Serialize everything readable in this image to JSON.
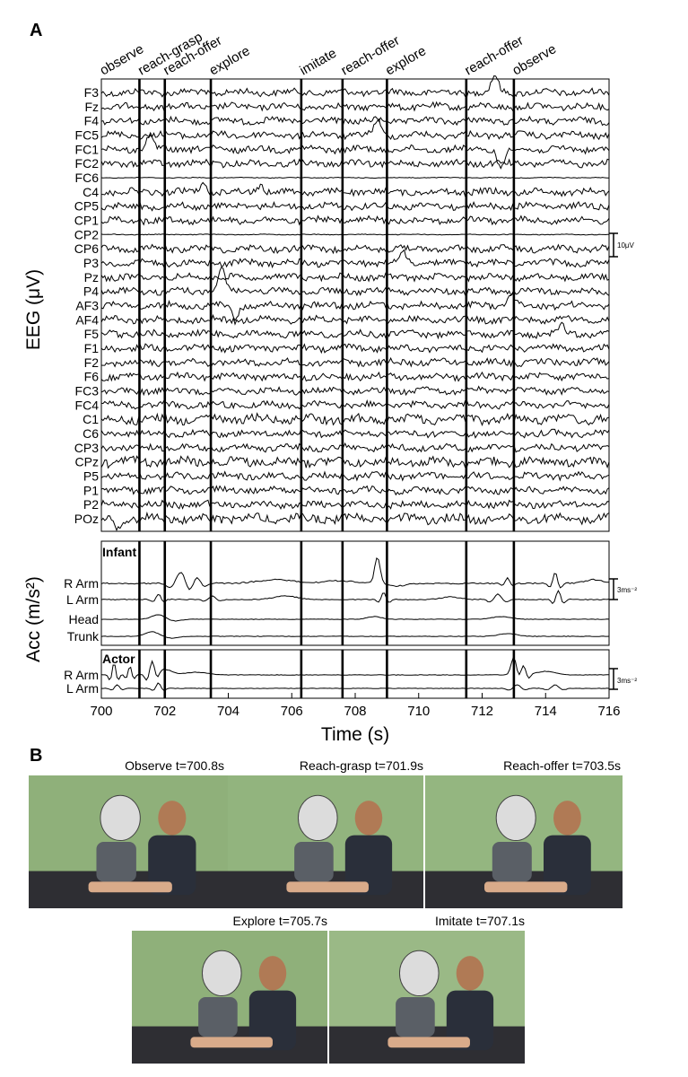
{
  "panels": {
    "a_label": "A",
    "b_label": "B"
  },
  "chart_data": {
    "type": "line",
    "xlabel": "Time (s)",
    "xlim": [
      700,
      716
    ],
    "x_ticks": [
      "700",
      "702",
      "704",
      "706",
      "708",
      "710",
      "712",
      "714",
      "716"
    ],
    "events": [
      {
        "label": "observe",
        "t": 700.0
      },
      {
        "label": "reach-grasp",
        "t": 701.2
      },
      {
        "label": "reach-offer",
        "t": 702.0
      },
      {
        "label": "explore",
        "t": 703.45
      },
      {
        "label": "imitate",
        "t": 706.3
      },
      {
        "label": "reach-offer",
        "t": 707.6
      },
      {
        "label": "explore",
        "t": 709.0
      },
      {
        "label": "reach-offer",
        "t": 711.5
      },
      {
        "label": "observe",
        "t": 713.0
      }
    ],
    "eeg": {
      "ylabel": "EEG (μV)",
      "scale_label": "10μV",
      "channels": [
        "F3",
        "Fz",
        "F4",
        "FC5",
        "FC1",
        "FC2",
        "FC6",
        "C4",
        "CP5",
        "CP1",
        "CP2",
        "CP6",
        "P3",
        "Pz",
        "P4",
        "AF3",
        "AF4",
        "F5",
        "F1",
        "F2",
        "F6",
        "FC3",
        "FC4",
        "C1",
        "C6",
        "CP3",
        "CPz",
        "P5",
        "P1",
        "P2",
        "POz"
      ]
    },
    "acc": {
      "ylabel": "Acc (m/s²)",
      "scale_label": "3ms⁻²",
      "infant_title": "Infant",
      "infant_channels": [
        "R Arm",
        "L Arm",
        "Head",
        "Trunk"
      ],
      "actor_title": "Actor",
      "actor_channels": [
        "R Arm",
        "L Arm"
      ]
    }
  },
  "frames": [
    {
      "caption": "Observe t=700.8s",
      "colors": {
        "wall": "#8fb07a",
        "floor": "#2e2e33",
        "shirt": "#2a2f3a",
        "skin": "#d9ab8a"
      }
    },
    {
      "caption": "Reach-grasp t=701.9s",
      "colors": {
        "wall": "#92b47e",
        "floor": "#2e2e33",
        "shirt": "#2a2f3a",
        "skin": "#d9ab8a"
      }
    },
    {
      "caption": "Reach-offer t=703.5s",
      "colors": {
        "wall": "#94b680",
        "floor": "#2e2e33",
        "shirt": "#2a2f3a",
        "skin": "#d9ab8a"
      }
    },
    {
      "caption": "Explore t=705.7s",
      "colors": {
        "wall": "#8fb07a",
        "floor": "#2e2e33",
        "shirt": "#2a2f3a",
        "skin": "#d9ab8a"
      }
    },
    {
      "caption": "Imitate t=707.1s",
      "colors": {
        "wall": "#9ab986",
        "floor": "#2e2e33",
        "shirt": "#2a2f3a",
        "skin": "#d9ab8a"
      }
    }
  ]
}
